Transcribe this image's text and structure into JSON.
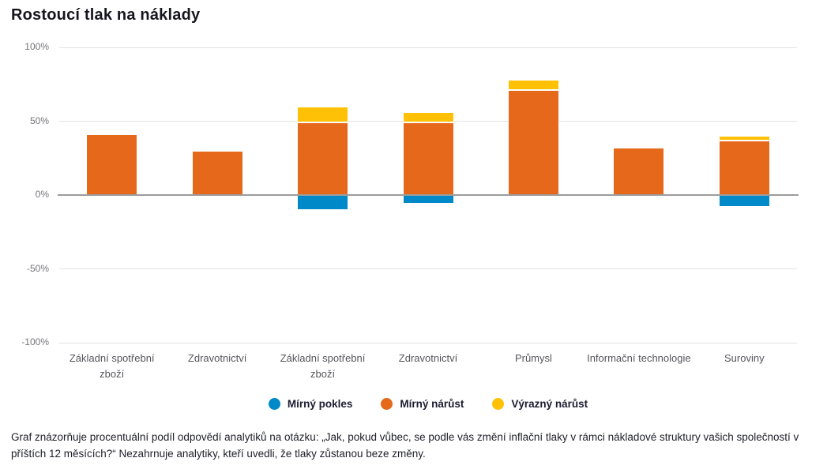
{
  "title": "Rostoucí tlak na náklady",
  "caption": "Graf znázorňuje procentuální podíl odpovědí analytiků na otázku: „Jak, pokud vůbec, se podle vás změní inflační tlaky v rámci nákladové struktury vašich společností v příštích 12 měsících?“ Nezahrnuje analytiky, kteří uvedli, že tlaky zůstanou beze změny.",
  "chart_data": {
    "type": "bar",
    "stacked": true,
    "title": "Rostoucí tlak na náklady",
    "categories": [
      "Základní spotřební zboží",
      "Zdravotnictví",
      "Základní spotřební zboží",
      "Zdravotnictví",
      "Průmysl",
      "Informační technologie",
      "Suroviny"
    ],
    "series": [
      {
        "name": "Mírný pokles",
        "color": "#0089C8",
        "values": [
          0,
          0,
          -10,
          -6,
          0,
          0,
          -8
        ]
      },
      {
        "name": "Mírný nárůst",
        "color": "#E6691B",
        "values": [
          41,
          30,
          49,
          49,
          71,
          32,
          37
        ]
      },
      {
        "name": "Výrazný nárůst",
        "color": "#FFC105",
        "values": [
          0,
          0,
          11,
          7,
          7,
          0,
          3
        ]
      }
    ],
    "y_ticks": [
      {
        "label": "100%",
        "value": 100
      },
      {
        "label": "50%",
        "value": 50
      },
      {
        "label": "0%",
        "value": 0
      },
      {
        "label": "-50%",
        "value": -50
      },
      {
        "label": "-100%",
        "value": -100
      }
    ],
    "ylim": [
      -100,
      100
    ],
    "grid": true,
    "legend_position": "bottom",
    "xlabel": "",
    "ylabel": ""
  }
}
